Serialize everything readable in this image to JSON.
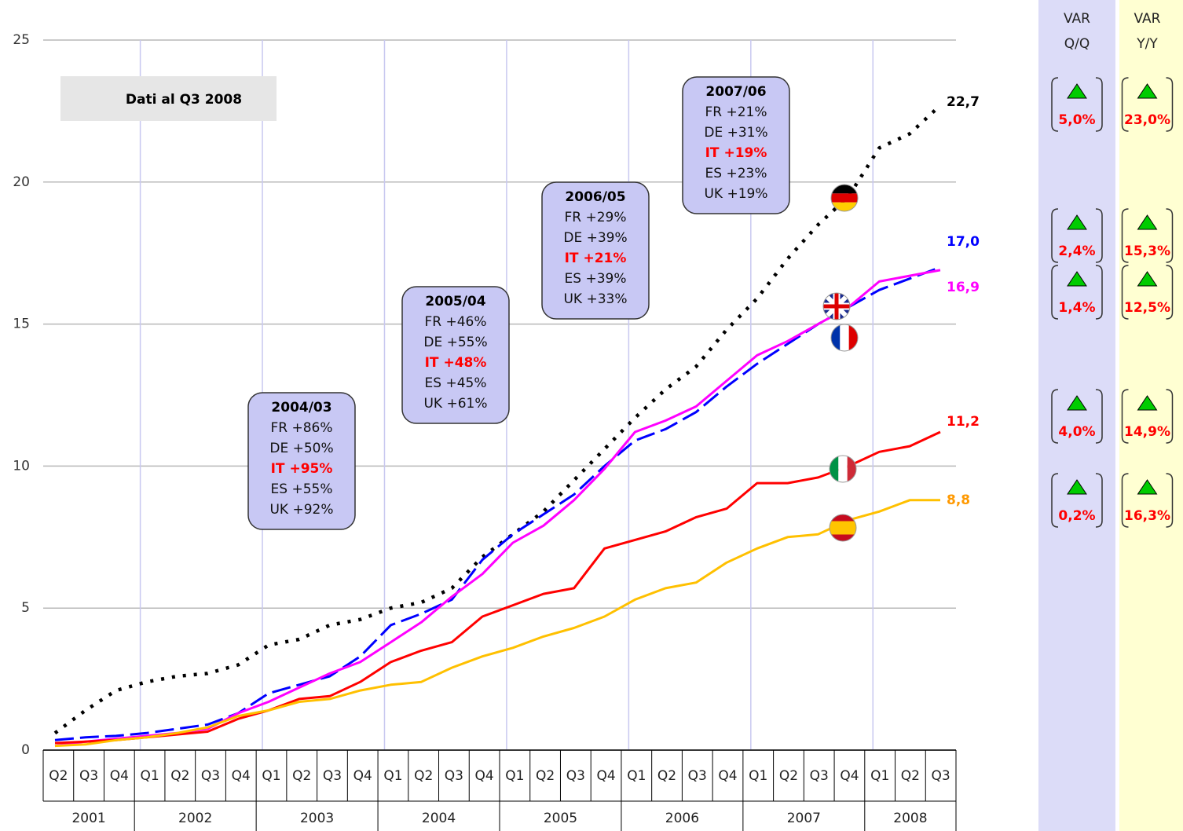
{
  "chart_data": {
    "type": "line",
    "categories": [
      "Q2",
      "Q3",
      "Q4",
      "Q1",
      "Q2",
      "Q3",
      "Q4",
      "Q1",
      "Q2",
      "Q3",
      "Q4",
      "Q1",
      "Q2",
      "Q3",
      "Q4",
      "Q1",
      "Q2",
      "Q3",
      "Q4",
      "Q1",
      "Q2",
      "Q3",
      "Q4",
      "Q1",
      "Q2",
      "Q3",
      "Q4",
      "Q1",
      "Q2",
      "Q3"
    ],
    "years": [
      "2001",
      "2002",
      "2003",
      "2004",
      "2005",
      "2006",
      "2007",
      "2008"
    ],
    "ylim": [
      0,
      25
    ],
    "yticks": [
      0,
      5,
      10,
      15,
      20,
      25
    ],
    "grid": true,
    "note": "Dati al Q3 2008",
    "series": [
      {
        "color": "#000000",
        "style": "dotted",
        "end_label": "22,7",
        "values": [
          0.6,
          1.4,
          2.1,
          2.4,
          2.6,
          2.7,
          3.0,
          3.7,
          3.9,
          4.4,
          4.6,
          5.0,
          5.2,
          5.7,
          6.8,
          7.6,
          8.4,
          9.5,
          10.6,
          11.7,
          12.7,
          13.5,
          14.8,
          15.9,
          17.3,
          18.5,
          19.5,
          21.2,
          21.7,
          22.7
        ]
      },
      {
        "color": "#0000ff",
        "style": "dashed",
        "end_label": "17,0",
        "values": [
          0.35,
          0.45,
          0.5,
          0.6,
          0.75,
          0.9,
          1.3,
          2.0,
          2.3,
          2.6,
          3.3,
          4.4,
          4.8,
          5.3,
          6.7,
          7.6,
          8.3,
          9.0,
          10.0,
          10.9,
          11.3,
          11.9,
          12.8,
          13.6,
          14.3,
          15.0,
          15.6,
          16.2,
          16.6,
          17.0
        ]
      },
      {
        "color": "#ff00ff",
        "style": "solid",
        "end_label": "16,9",
        "values": [
          0.15,
          0.3,
          0.4,
          0.5,
          0.6,
          0.75,
          1.3,
          1.7,
          2.2,
          2.7,
          3.1,
          3.8,
          4.5,
          5.4,
          6.2,
          7.3,
          7.9,
          8.8,
          9.9,
          11.2,
          11.6,
          12.1,
          13.0,
          13.9,
          14.4,
          15.0,
          15.6,
          16.5,
          16.7,
          16.9
        ]
      },
      {
        "color": "#ff0000",
        "style": "solid",
        "end_label": "11,2",
        "values": [
          0.25,
          0.3,
          0.35,
          0.45,
          0.55,
          0.65,
          1.1,
          1.4,
          1.8,
          1.9,
          2.4,
          3.1,
          3.5,
          3.8,
          4.7,
          5.1,
          5.5,
          5.7,
          7.1,
          7.4,
          7.7,
          8.2,
          8.5,
          9.4,
          9.4,
          9.6,
          10.0,
          10.5,
          10.7,
          11.2
        ]
      },
      {
        "color": "#ffc000",
        "style": "solid",
        "end_label": "8,8",
        "label_color": "#ff9900",
        "values": [
          0.15,
          0.2,
          0.35,
          0.45,
          0.6,
          0.8,
          1.2,
          1.4,
          1.7,
          1.8,
          2.1,
          2.3,
          2.4,
          2.9,
          3.3,
          3.6,
          4.0,
          4.3,
          4.7,
          5.3,
          5.7,
          5.9,
          6.6,
          7.1,
          7.5,
          7.6,
          8.1,
          8.4,
          8.8,
          8.8
        ]
      }
    ],
    "callouts": [
      {
        "title": "2004/03",
        "highlight_line": 2,
        "lines": [
          "FR +86%",
          "DE +50%",
          "IT +95%",
          "ES +55%",
          "UK +92%"
        ]
      },
      {
        "title": "2005/04",
        "highlight_line": 2,
        "lines": [
          "FR +46%",
          "DE +55%",
          "IT +48%",
          "ES +45%",
          "UK +61%"
        ]
      },
      {
        "title": "2006/05",
        "highlight_line": 2,
        "lines": [
          "FR +29%",
          "DE +39%",
          "IT +21%",
          "ES +39%",
          "UK +33%"
        ]
      },
      {
        "title": "2007/06",
        "highlight_line": 2,
        "lines": [
          "FR +21%",
          "DE +31%",
          "IT +19%",
          "ES +23%",
          "UK +19%"
        ]
      }
    ]
  },
  "var_panels": [
    {
      "title": [
        "VAR",
        "Q/Q"
      ],
      "color": "#dcdcf8",
      "values": [
        "5,0%",
        "2,4%",
        "1,4%",
        "4,0%",
        "0,2%"
      ]
    },
    {
      "title": [
        "VAR",
        "Y/Y"
      ],
      "color": "#ffffd2",
      "values": [
        "23,0%",
        "15,3%",
        "12,5%",
        "14,9%",
        "16,3%"
      ]
    }
  ]
}
